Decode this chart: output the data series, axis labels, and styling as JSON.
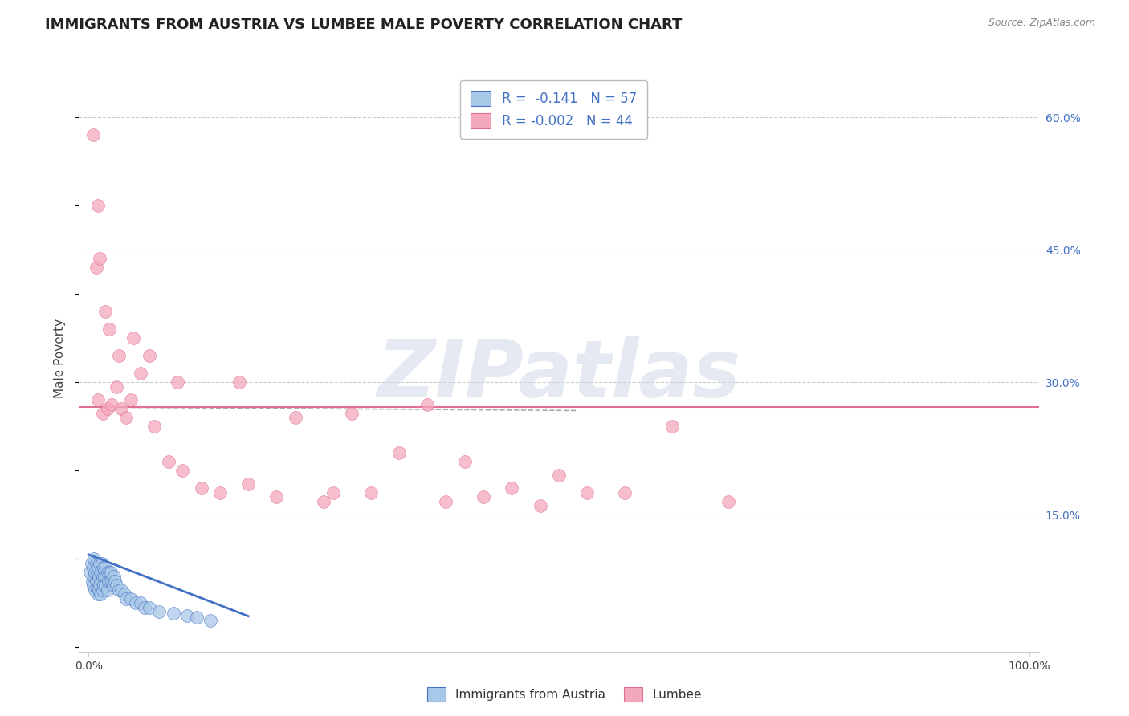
{
  "title": "IMMIGRANTS FROM AUSTRIA VS LUMBEE MALE POVERTY CORRELATION CHART",
  "source": "Source: ZipAtlas.com",
  "ylabel": "Male Poverty",
  "legend_label1": "Immigrants from Austria",
  "legend_label2": "Lumbee",
  "r1": -0.141,
  "n1": 57,
  "r2": -0.002,
  "n2": 44,
  "xlim": [
    -1.0,
    101.0
  ],
  "ylim": [
    -0.005,
    0.66
  ],
  "ytick_positions": [
    0.15,
    0.3,
    0.45,
    0.6
  ],
  "ytick_labels": [
    "15.0%",
    "30.0%",
    "45.0%",
    "60.0%"
  ],
  "color_blue": "#A8C8E8",
  "color_pink": "#F4A8BC",
  "color_blue_dark": "#4472C4",
  "color_pink_dark": "#E07090",
  "horizontal_line_y": 0.272,
  "horizontal_line_color": "#E07090",
  "watermark": "ZIPatlas",
  "blue_trend_x1": 0.0,
  "blue_trend_y1": 0.105,
  "blue_trend_x2": 17.0,
  "blue_trend_y2": 0.035,
  "pink_trend_x1": 0.0,
  "pink_trend_y1": 0.272,
  "pink_trend_x2": 52.0,
  "pink_trend_y2": 0.268,
  "blue_scatter_x": [
    0.2,
    0.3,
    0.4,
    0.5,
    0.5,
    0.6,
    0.6,
    0.7,
    0.7,
    0.8,
    0.8,
    0.9,
    0.9,
    1.0,
    1.0,
    1.0,
    1.1,
    1.1,
    1.2,
    1.2,
    1.3,
    1.3,
    1.4,
    1.4,
    1.5,
    1.5,
    1.6,
    1.6,
    1.7,
    1.8,
    1.8,
    1.9,
    2.0,
    2.0,
    2.1,
    2.2,
    2.3,
    2.4,
    2.5,
    2.6,
    2.7,
    2.8,
    3.0,
    3.2,
    3.5,
    3.8,
    4.0,
    4.5,
    5.0,
    5.5,
    6.0,
    6.5,
    7.5,
    9.0,
    10.5,
    11.5,
    13.0
  ],
  "blue_scatter_y": [
    0.085,
    0.095,
    0.075,
    0.09,
    0.07,
    0.08,
    0.1,
    0.085,
    0.065,
    0.095,
    0.075,
    0.085,
    0.065,
    0.09,
    0.075,
    0.06,
    0.08,
    0.065,
    0.095,
    0.07,
    0.085,
    0.06,
    0.095,
    0.075,
    0.08,
    0.065,
    0.09,
    0.07,
    0.08,
    0.09,
    0.07,
    0.08,
    0.085,
    0.065,
    0.075,
    0.085,
    0.075,
    0.085,
    0.075,
    0.07,
    0.08,
    0.075,
    0.07,
    0.065,
    0.065,
    0.06,
    0.055,
    0.055,
    0.05,
    0.05,
    0.045,
    0.045,
    0.04,
    0.038,
    0.036,
    0.034,
    0.03
  ],
  "pink_scatter_x": [
    0.5,
    1.0,
    1.5,
    2.0,
    2.5,
    3.0,
    3.5,
    4.0,
    4.5,
    5.5,
    7.0,
    8.5,
    10.0,
    12.0,
    14.0,
    17.0,
    20.0,
    25.0,
    28.0,
    30.0,
    33.0,
    36.0,
    40.0,
    42.0,
    45.0,
    50.0,
    53.0,
    57.0,
    62.0,
    68.0,
    0.8,
    1.2,
    1.8,
    2.2,
    3.2,
    4.8,
    6.5,
    9.5,
    16.0,
    22.0,
    26.0,
    38.0,
    48.0,
    1.0
  ],
  "pink_scatter_y": [
    0.58,
    0.28,
    0.265,
    0.27,
    0.275,
    0.295,
    0.27,
    0.26,
    0.28,
    0.31,
    0.25,
    0.21,
    0.2,
    0.18,
    0.175,
    0.185,
    0.17,
    0.165,
    0.265,
    0.175,
    0.22,
    0.275,
    0.21,
    0.17,
    0.18,
    0.195,
    0.175,
    0.175,
    0.25,
    0.165,
    0.43,
    0.44,
    0.38,
    0.36,
    0.33,
    0.35,
    0.33,
    0.3,
    0.3,
    0.26,
    0.175,
    0.165,
    0.16,
    0.5
  ]
}
